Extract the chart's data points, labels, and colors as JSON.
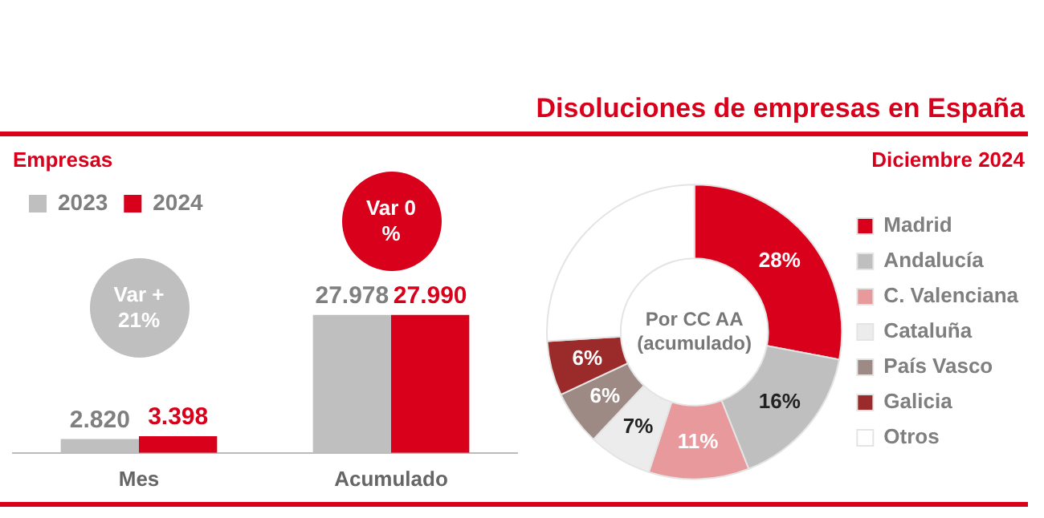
{
  "chart_data": [
    {
      "type": "bar",
      "subtitle": "Empresas",
      "categories": [
        "Mes",
        "Acumulado"
      ],
      "series": [
        {
          "name": "2023",
          "color": "#bfbfbf",
          "values": [
            2820,
            27978
          ],
          "value_labels": [
            "2.820",
            "27.978"
          ]
        },
        {
          "name": "2024",
          "color": "#d9001b",
          "values": [
            3398,
            27990
          ],
          "value_labels": [
            "3.398",
            "27.990"
          ]
        }
      ],
      "legend": "top left",
      "grid": false,
      "annotations": [
        "Var + 21%",
        "Var 0 %"
      ]
    },
    {
      "type": "donut",
      "title": "Disoluciones de empresas en España",
      "subtitle": "Diciembre 2024",
      "categories": [
        "Madrid",
        "Andalucía",
        "C. Valenciana",
        "Cataluña",
        "País Vasco",
        "Galicia",
        "Otros"
      ],
      "values": [
        28,
        16,
        11,
        7,
        6,
        6,
        26
      ],
      "colors": [
        "#d9001b",
        "#bfbfbf",
        "#e8999c",
        "#ececec",
        "#9e8a84",
        "#9b2a2a",
        "#ffffff"
      ],
      "value_labels": [
        "28%",
        "16%",
        "11%",
        "7%",
        "6%",
        "6%",
        null
      ],
      "legend": "right",
      "annotations": [
        "Por CC AA (acumulado)"
      ]
    }
  ]
}
